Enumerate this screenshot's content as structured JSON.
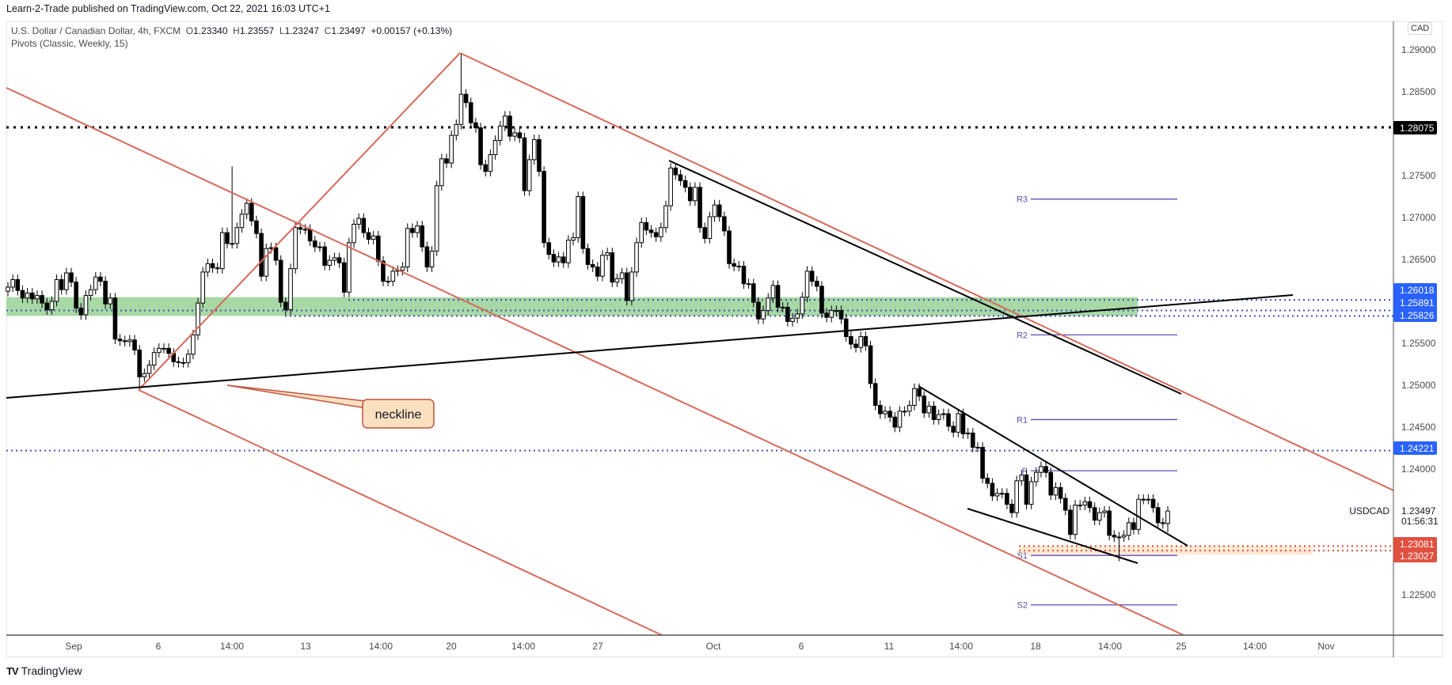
{
  "header": {
    "published": "Learn-2-Trade published on TradingView.com, Oct 22, 2021 16:03 UTC+1"
  },
  "legend": {
    "symbol": "U.S. Dollar / Canadian Dollar, 4h, FXCM",
    "o_label": "O",
    "o": "1.23340",
    "h_label": "H",
    "h": "1.23557",
    "l_label": "L",
    "l": "1.23247",
    "c_label": "C",
    "c": "1.23497",
    "change": "+0.00157 (+0.13%)",
    "indicator": "Pivots (Classic, Weekly, 15)"
  },
  "currency_button": "CAD",
  "footer": {
    "brand": "TradingView"
  },
  "colors": {
    "up_body": "#ffffff",
    "down_body": "#000000",
    "trendline_red": "#d6695a",
    "pivot": "#5b4fb0",
    "blue_badge": "#2962ff",
    "red_badge": "#e0503f",
    "support_zone": "#a8d8a5",
    "demand_zone": "#fde8d2"
  },
  "chart_data": {
    "type": "candlestick",
    "symbol_label": "USDCAD",
    "current_price": "1.23497",
    "countdown": "01:56:31",
    "ylim": [
      1.2205,
      1.2935
    ],
    "y_ticks": [
      "1.29000",
      "1.28500",
      "1.27500",
      "1.27000",
      "1.26500",
      "1.25500",
      "1.25000",
      "1.24500",
      "1.24000",
      "1.22500"
    ],
    "x_ticks": [
      "Sep",
      "6",
      "14:00",
      "13",
      "14:00",
      "20",
      "14:00",
      "27",
      "Oct",
      "6",
      "11",
      "14:00",
      "18",
      "14:00",
      "25",
      "14:00",
      "Nov"
    ],
    "first_open": 1.2612,
    "close": [
      1.2617,
      1.2626,
      1.2613,
      1.2604,
      1.261,
      1.2603,
      1.2607,
      1.2598,
      1.259,
      1.26,
      1.2626,
      1.2614,
      1.2634,
      1.2623,
      1.2592,
      1.2584,
      1.2607,
      1.2614,
      1.2629,
      1.2624,
      1.2597,
      1.2604,
      1.2555,
      1.2553,
      1.2552,
      1.2554,
      1.2542,
      1.251,
      1.2514,
      1.2524,
      1.2539,
      1.2544,
      1.2544,
      1.2538,
      1.2528,
      1.2527,
      1.2527,
      1.2537,
      1.256,
      1.2598,
      1.2635,
      1.2645,
      1.264,
      1.2639,
      1.2682,
      1.2669,
      1.2669,
      1.2688,
      1.2704,
      1.2717,
      1.2696,
      1.2681,
      1.263,
      1.2663,
      1.2664,
      1.2649,
      1.2599,
      1.259,
      1.2639,
      1.2688,
      1.2686,
      1.2686,
      1.2672,
      1.2665,
      1.2665,
      1.2643,
      1.2649,
      1.2652,
      1.2646,
      1.2611,
      1.267,
      1.2692,
      1.2699,
      1.2682,
      1.2674,
      1.2678,
      1.2648,
      1.2624,
      1.2624,
      1.2636,
      1.2637,
      1.2641,
      1.2687,
      1.2682,
      1.269,
      1.2665,
      1.2641,
      1.266,
      1.2738,
      1.277,
      1.2765,
      1.2798,
      1.2811,
      1.2847,
      1.2837,
      1.2813,
      1.2807,
      1.2763,
      1.2755,
      1.2775,
      1.2792,
      1.2809,
      1.2821,
      1.2797,
      1.2801,
      1.2795,
      1.2732,
      1.2769,
      1.2793,
      1.2755,
      1.267,
      1.2656,
      1.2647,
      1.2653,
      1.2646,
      1.2673,
      1.2676,
      1.2725,
      1.2663,
      1.2644,
      1.2641,
      1.263,
      1.2655,
      1.2658,
      1.2623,
      1.2627,
      1.2634,
      1.2601,
      1.2635,
      1.267,
      1.2694,
      1.2685,
      1.2682,
      1.2677,
      1.2688,
      1.2714,
      1.2759,
      1.2751,
      1.2744,
      1.2736,
      1.272,
      1.2736,
      1.2688,
      1.2675,
      1.2701,
      1.2715,
      1.2701,
      1.2684,
      1.2645,
      1.2642,
      1.2642,
      1.2621,
      1.2621,
      1.2599,
      1.2579,
      1.2589,
      1.2604,
      1.2619,
      1.2593,
      1.2593,
      1.2576,
      1.258,
      1.2585,
      1.2605,
      1.2636,
      1.2624,
      1.2618,
      1.2586,
      1.2581,
      1.2589,
      1.2589,
      1.2579,
      1.2558,
      1.2549,
      1.2545,
      1.2558,
      1.2547,
      1.2502,
      1.2476,
      1.2466,
      1.2469,
      1.2462,
      1.245,
      1.2469,
      1.2469,
      1.2476,
      1.2496,
      1.2487,
      1.2467,
      1.2475,
      1.2459,
      1.2465,
      1.2466,
      1.2451,
      1.2444,
      1.2466,
      1.2442,
      1.2443,
      1.2426,
      1.2426,
      1.2389,
      1.2383,
      1.2368,
      1.2371,
      1.2371,
      1.2358,
      1.2348,
      1.2386,
      1.2393,
      1.2358,
      1.2385,
      1.2396,
      1.2403,
      1.2396,
      1.2369,
      1.2378,
      1.2365,
      1.2351,
      1.2322,
      1.2357,
      1.2357,
      1.2361,
      1.2354,
      1.2339,
      1.2348,
      1.235,
      1.2321,
      1.2319,
      1.2319,
      1.2321,
      1.2336,
      1.2328,
      1.2364,
      1.2364,
      1.2364,
      1.2354,
      1.2336,
      1.2335,
      1.235
    ],
    "wick_extremes": [
      {
        "i": 27,
        "low": 1.2494
      },
      {
        "i": 46,
        "high": 1.2761
      },
      {
        "i": 93,
        "high": 1.2896
      },
      {
        "i": 228,
        "low": 1.229
      },
      {
        "i": 238,
        "high": 1.23557,
        "low": 1.23247
      }
    ],
    "horizontal_levels": [
      {
        "price": 1.28075,
        "label": "1.28075",
        "style": "black"
      },
      {
        "price": 1.26018,
        "label": "1.26018",
        "style": "blue"
      },
      {
        "price": 1.25891,
        "label": "1.25891",
        "style": "blue"
      },
      {
        "price": 1.25826,
        "label": "1.25826",
        "style": "blue"
      },
      {
        "price": 1.24221,
        "label": "1.24221",
        "style": "blue"
      },
      {
        "price": 1.23081,
        "label": "1.23081",
        "style": "red"
      },
      {
        "price": 1.23027,
        "label": "1.23027",
        "style": "red"
      }
    ],
    "zones": [
      {
        "name": "support",
        "from": 1.25826,
        "to": 1.2605
      },
      {
        "name": "demand",
        "from": 1.2298,
        "to": 1.23081
      }
    ],
    "pivots": [
      {
        "label": "R3",
        "value": 1.2722
      },
      {
        "label": "R2",
        "value": 1.256
      },
      {
        "label": "R1",
        "value": 1.2459
      },
      {
        "label": "P",
        "value": 1.2398
      },
      {
        "label": "S1",
        "value": 1.2297
      },
      {
        "label": "S2",
        "value": 1.2238
      }
    ],
    "annotations": [
      {
        "text": "neckline"
      }
    ]
  }
}
